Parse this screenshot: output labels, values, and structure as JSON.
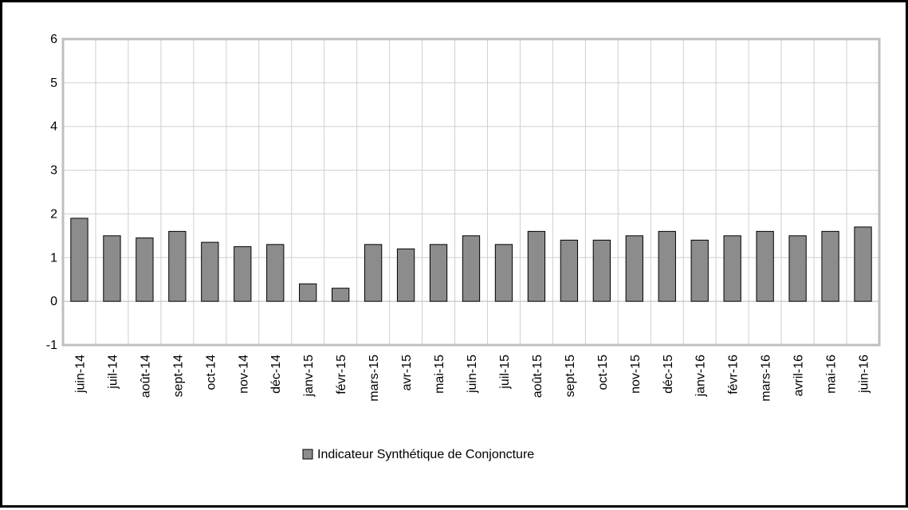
{
  "chart_data": {
    "type": "bar",
    "categories": [
      "juin-14",
      "juil-14",
      "août-14",
      "sept-14",
      "oct-14",
      "nov-14",
      "déc-14",
      "janv-15",
      "févr-15",
      "mars-15",
      "avr-15",
      "mai-15",
      "juin-15",
      "juil-15",
      "août-15",
      "sept-15",
      "oct-15",
      "nov-15",
      "déc-15",
      "janv-16",
      "févr-16",
      "mars-16",
      "avril-16",
      "mai-16",
      "juin-16"
    ],
    "series": [
      {
        "name": "Indicateur Synthétique de Conjoncture",
        "values": [
          1.9,
          1.5,
          1.45,
          1.6,
          1.35,
          1.25,
          1.3,
          0.4,
          0.3,
          1.3,
          1.2,
          1.3,
          1.5,
          1.3,
          1.6,
          1.4,
          1.4,
          1.5,
          1.6,
          1.4,
          1.5,
          1.6,
          1.5,
          1.6,
          1.7
        ],
        "color": "#8c8c8c"
      }
    ],
    "ylim": [
      -1,
      6
    ],
    "yticks": [
      -1,
      0,
      1,
      2,
      3,
      4,
      5,
      6
    ],
    "grid": true,
    "legend": "bottom"
  }
}
